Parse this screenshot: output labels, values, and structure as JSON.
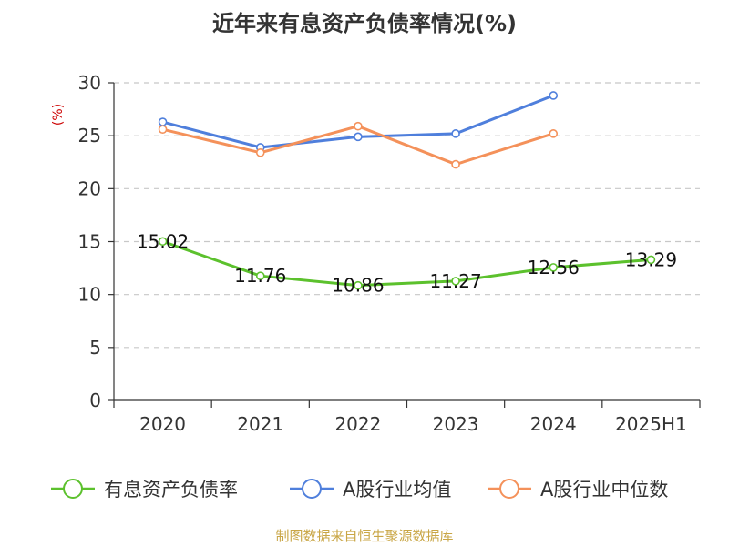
{
  "chart_data": {
    "type": "line",
    "title": "近年来有息资产负债率情况(%)",
    "ylabel": "(%)",
    "xlabel": "",
    "categories": [
      "2020",
      "2021",
      "2022",
      "2023",
      "2024",
      "2025H1"
    ],
    "ylim": [
      0,
      30
    ],
    "yticks": [
      0,
      5,
      10,
      15,
      20,
      25,
      30
    ],
    "grid": true,
    "legend_position": "bottom",
    "series": [
      {
        "name": "有息资产负债率",
        "color": "#5cc12d",
        "values": [
          15.02,
          11.76,
          10.86,
          11.27,
          12.56,
          13.29
        ],
        "labels": [
          "15.02",
          "11.76",
          "10.86",
          "11.27",
          "12.56",
          "13.29"
        ]
      },
      {
        "name": "A股行业均值",
        "color": "#4f7fdc",
        "values": [
          26.3,
          23.9,
          24.9,
          25.2,
          28.8,
          null
        ]
      },
      {
        "name": "A股行业中位数",
        "color": "#f4915a",
        "values": [
          25.6,
          23.4,
          25.9,
          22.3,
          25.2,
          null
        ]
      }
    ],
    "source": "制图数据来自恒生聚源数据库"
  }
}
